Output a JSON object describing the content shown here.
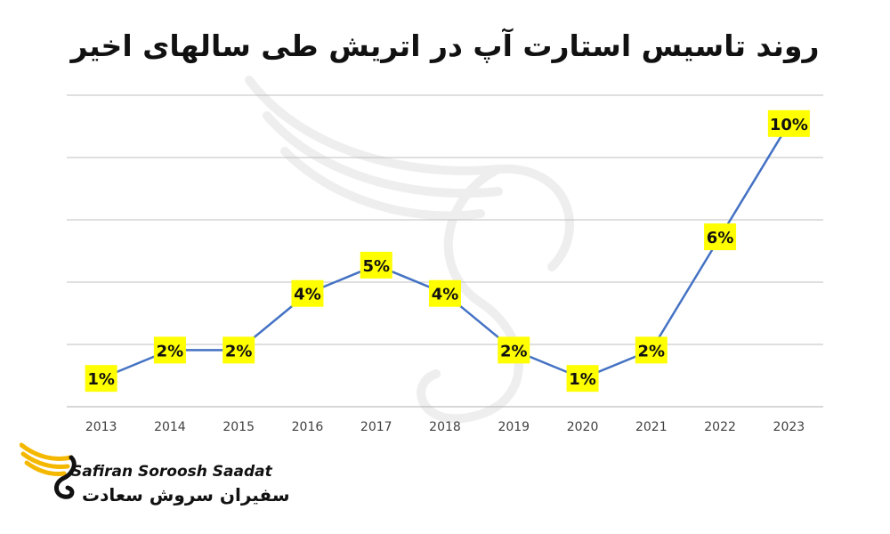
{
  "chart_data": {
    "type": "line",
    "title": "روند تاسیس استارت آپ در اتریش طی سالهای اخیر",
    "categories": [
      "2013",
      "2014",
      "2015",
      "2016",
      "2017",
      "2018",
      "2019",
      "2020",
      "2021",
      "2022",
      "2023"
    ],
    "series": [
      {
        "values": [
          1,
          2,
          2,
          4,
          5,
          4,
          2,
          1,
          2,
          6,
          10
        ],
        "labels": [
          "1%",
          "2%",
          "2%",
          "4%",
          "5%",
          "4%",
          "2%",
          "1%",
          "2%",
          "6%",
          "10%"
        ]
      }
    ],
    "ylim": [
      0,
      11
    ],
    "grid": true,
    "line_color": "#4472c4",
    "label_bg": "#ffff00",
    "grid_color": "#bfbfbf"
  },
  "logo": {
    "name_en": "Safiran Soroosh Saadat",
    "name_fa": "سفیران سروش سعادت",
    "accent": "#f5b800"
  }
}
